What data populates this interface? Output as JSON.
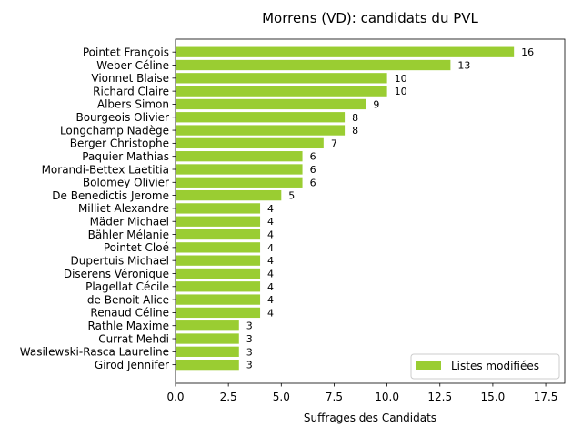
{
  "chart_data": {
    "type": "bar",
    "orientation": "horizontal",
    "title": "Morrens (VD): candidats du PVL",
    "xlabel": "Suffrages des Candidats",
    "ylabel": "",
    "xlim": [
      0,
      18.4
    ],
    "x_ticks": [
      "0.0",
      "2.5",
      "5.0",
      "7.5",
      "10.0",
      "12.5",
      "15.0",
      "17.5"
    ],
    "x_tick_values": [
      0,
      2.5,
      5,
      7.5,
      10,
      12.5,
      15,
      17.5
    ],
    "grid": false,
    "legend_position": "lower right",
    "bar_color": "#9acd32",
    "series": [
      {
        "name": "Listes modifiées",
        "values": [
          16,
          13,
          10,
          10,
          9,
          8,
          8,
          7,
          6,
          6,
          6,
          5,
          4,
          4,
          4,
          4,
          4,
          4,
          4,
          4,
          4,
          3,
          3,
          3,
          3
        ]
      }
    ],
    "categories": [
      "Pointet François",
      "Weber Céline",
      "Vionnet Blaise",
      "Richard Claire",
      "Albers Simon",
      "Bourgeois Olivier",
      "Longchamp Nadège",
      "Berger Christophe",
      "Paquier Mathias",
      "Morandi-Bettex Laetitia",
      "Bolomey Olivier",
      "De Benedictis Jerome",
      "Milliet Alexandre",
      "Mäder Michael",
      "Bähler Mélanie",
      "Pointet Cloé",
      "Dupertuis Michael",
      "Diserens Véronique",
      "Plagellat Cécile",
      "de Benoit Alice",
      "Renaud Céline",
      "Rathle Maxime",
      "Currat Mehdi",
      "Wasilewski-Rasca Laureline",
      "Girod Jennifer"
    ]
  }
}
